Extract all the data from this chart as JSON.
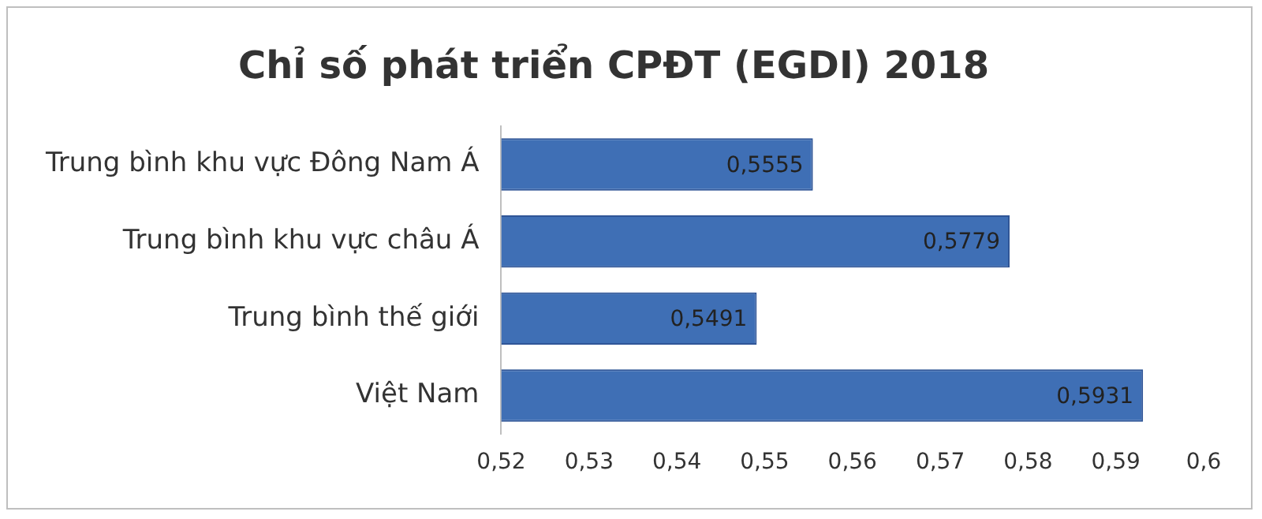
{
  "chart_data": {
    "type": "bar",
    "orientation": "horizontal",
    "title": "Chỉ số phát triển CPĐT (EGDI) 2018",
    "categories": [
      "Trung bình khu vực Đông Nam Á",
      "Trung bình khu vực châu Á",
      "Trung bình thế giới",
      "Việt Nam"
    ],
    "values": [
      0.5555,
      0.5779,
      0.5491,
      0.5931
    ],
    "value_labels": [
      "0,5555",
      "0,5779",
      "0,5491",
      "0,5931"
    ],
    "color": "#3f6fb5",
    "xlim": [
      0.52,
      0.6
    ],
    "xticks": [
      {
        "value": 0.52,
        "label": "0,52"
      },
      {
        "value": 0.53,
        "label": "0,53"
      },
      {
        "value": 0.54,
        "label": "0,54"
      },
      {
        "value": 0.55,
        "label": "0,55"
      },
      {
        "value": 0.56,
        "label": "0,56"
      },
      {
        "value": 0.57,
        "label": "0,57"
      },
      {
        "value": 0.58,
        "label": "0,58"
      },
      {
        "value": 0.59,
        "label": "0,59"
      },
      {
        "value": 0.6,
        "label": "0,6"
      }
    ],
    "grid": false,
    "legend": false
  }
}
